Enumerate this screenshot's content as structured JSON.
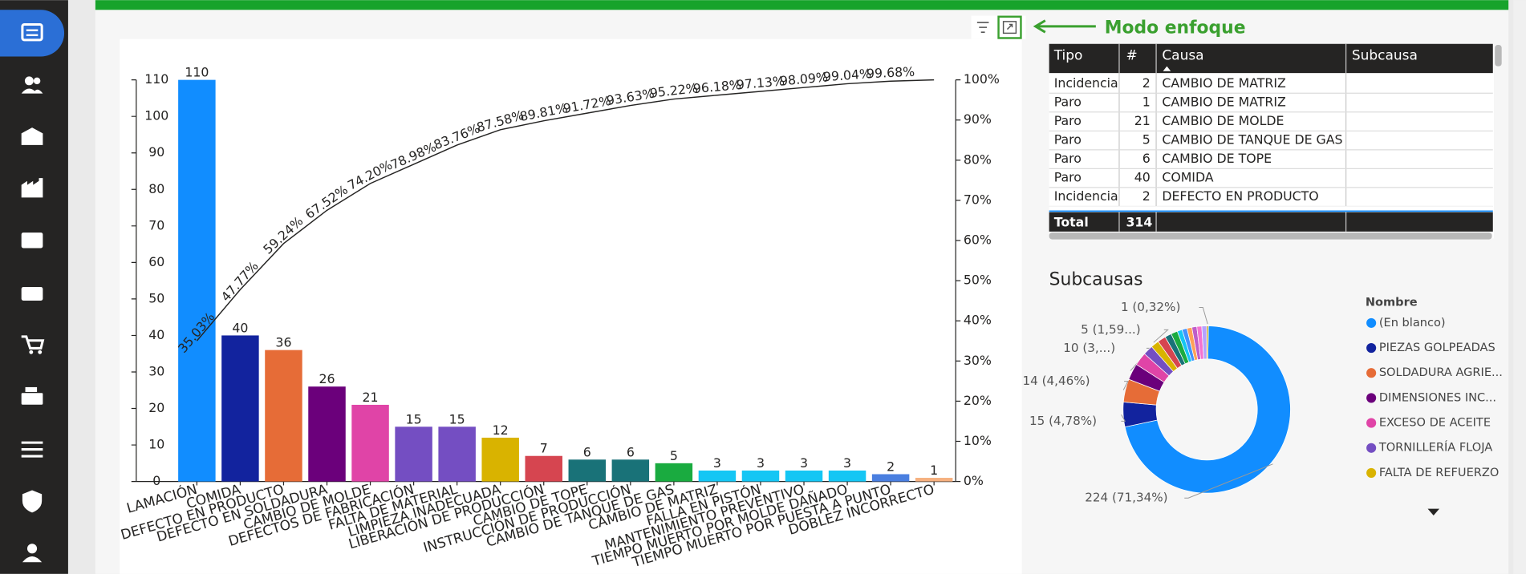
{
  "annotation": {
    "text": "Modo enfoque"
  },
  "chart_data": [
    {
      "type": "bar",
      "categories": [
        "LAMACIÓN",
        "COMIDA",
        "DEFECTO EN PRODUCTO",
        "DEFECTO EN SOLDADURA",
        "CAMBIO DE MOLDE",
        "DEFECTOS DE FABRICACIÓN",
        "FALTA DE MATERIAL",
        "LIMPIEZA INADECUADA",
        "LIBERACIÓN DE PRODUCCIÓN",
        "CAMBIO DE TOPE",
        "INSTRUCCIÓN DE PRODUCCIÓN",
        "CAMBIO DE TANQUE DE GAS",
        "CAMBIO DE MATRIZ",
        "FALLA EN PISTÓN",
        "MANTENIMIENTO PREVENTIVO",
        "TIEMPO MUERTO POR MOLDE DAÑADO",
        "TIEMPO MUERTO POR PUESTA A PUNTO",
        "DOBLEZ INCORRECTO"
      ],
      "series": [
        {
          "values": [
            110,
            40,
            36,
            26,
            21,
            15,
            15,
            12,
            7,
            6,
            6,
            5,
            3,
            3,
            3,
            3,
            2,
            1
          ],
          "colors": [
            "#118dff",
            "#12239e",
            "#e66c37",
            "#6b007b",
            "#e044a7",
            "#744ec2",
            "#744ec2",
            "#d9b300",
            "#d64550",
            "#197278",
            "#197278",
            "#1aab40",
            "#15c6f4",
            "#15c6f4",
            "#15c6f4",
            "#15c6f4",
            "#4a7fe0",
            "#f6b07f"
          ]
        },
        {
          "type": "line",
          "axis": "y2",
          "color": "#252423",
          "values": [
            35.03,
            47.77,
            59.24,
            67.52,
            74.2,
            78.98,
            83.76,
            87.58,
            89.81,
            91.72,
            93.63,
            95.22,
            96.18,
            97.13,
            98.09,
            99.04,
            99.68,
            100
          ],
          "value_labels": [
            "35.03%",
            "47.77%",
            "59.24%",
            "67.52%",
            "74.20%",
            "78.98%",
            "83.76%",
            "87.58%",
            "89.81%",
            "91.72%",
            "93.63%",
            "95.22%",
            "96.18%",
            "97.13%",
            "98.09%",
            "99.04%",
            "99.68%",
            null
          ]
        }
      ],
      "ylim": [
        0,
        110
      ],
      "yticks": [
        0,
        10,
        20,
        30,
        40,
        50,
        60,
        70,
        80,
        90,
        100,
        110
      ],
      "y2lim": [
        0,
        100
      ],
      "y2ticks": [
        {
          "value": 0,
          "label": "0%"
        },
        {
          "value": 10,
          "label": "10%"
        },
        {
          "value": 20,
          "label": "20%"
        },
        {
          "value": 30,
          "label": "30%"
        },
        {
          "value": 40,
          "label": "40%"
        },
        {
          "value": 50,
          "label": "50%"
        },
        {
          "value": 60,
          "label": "60%"
        },
        {
          "value": 70,
          "label": "70%"
        },
        {
          "value": 80,
          "label": "80%"
        },
        {
          "value": 90,
          "label": "90%"
        },
        {
          "value": 100,
          "label": "100%"
        }
      ]
    },
    {
      "type": "donut",
      "title": "Subcausas",
      "legend_title": "Nombre",
      "labels": [
        "(En blanco)",
        "PIEZAS GOLPEADAS",
        "SOLDADURA AGRIE...",
        "DIMENSIONES INC...",
        "EXCESO DE ACEITE",
        "TORNILLERÍA FLOJA",
        "FALTA DE REFUERZO",
        null,
        null,
        null,
        null,
        null,
        null,
        null,
        null,
        null,
        null
      ],
      "values": [
        224,
        15,
        14,
        10,
        8,
        6,
        5,
        5,
        4,
        4,
        3,
        3,
        3,
        3,
        3,
        3,
        1
      ],
      "colors": [
        "#118dff",
        "#12239e",
        "#e66c37",
        "#6b007b",
        "#e044a7",
        "#744ec2",
        "#d9b300",
        "#d64550",
        "#197278",
        "#1aab40",
        "#15c6f4",
        "#4092ff",
        "#ffa058",
        "#be5dc9",
        "#f472d0",
        "#b5a1ff",
        "#c4a200"
      ],
      "value_labels": [
        "224 (71,34%)",
        "15 (4,78%)",
        "14 (4,46%)",
        "10 (3,...)",
        null,
        null,
        "5 (1,59...)",
        null,
        null,
        null,
        null,
        null,
        null,
        null,
        null,
        null,
        "1 (0,32%)"
      ]
    }
  ],
  "table": {
    "header": [
      "Tipo",
      "#",
      "Causa",
      "Subcausa"
    ],
    "rows": [
      [
        "Incidencia",
        2,
        "CAMBIO DE MATRIZ",
        null
      ],
      [
        "Paro",
        1,
        "CAMBIO DE MATRIZ",
        null
      ],
      [
        "Paro",
        21,
        "CAMBIO DE MOLDE",
        null
      ],
      [
        "Paro",
        5,
        "CAMBIO DE TANQUE DE GAS",
        null
      ],
      [
        "Paro",
        6,
        "CAMBIO DE TOPE",
        null
      ],
      [
        "Paro",
        40,
        "COMIDA",
        null
      ],
      [
        "Incidencia",
        2,
        "DEFECTO EN PRODUCTO",
        null
      ]
    ],
    "total": [
      "Total",
      314
    ]
  }
}
